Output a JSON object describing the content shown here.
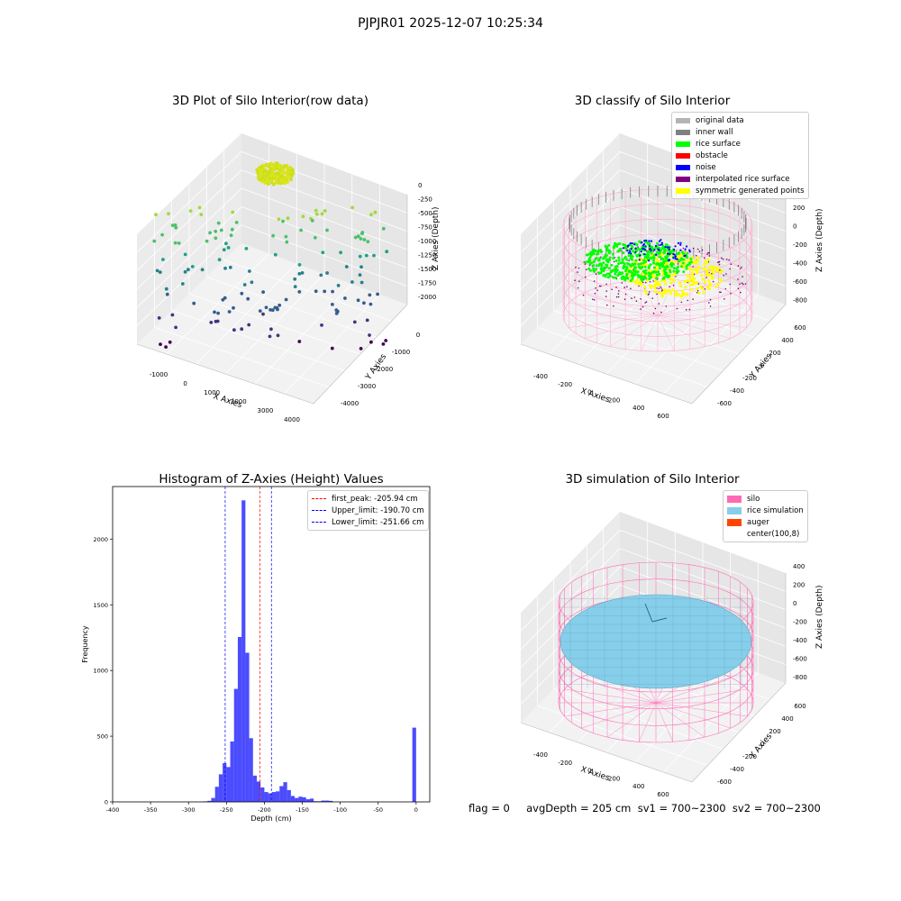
{
  "suptitle": "PJPJR01 2025-12-07 10:25:34",
  "panels": {
    "raw": {
      "title": "3D Plot of Silo Interior(row data)",
      "xlabel": "X Axies",
      "ylabel": "Y Axies",
      "zlabel": "Z Axies (Depth)",
      "xticks": [
        "-1000",
        "0",
        "1000",
        "2000",
        "3000",
        "4000"
      ],
      "yticks": [
        "-4000",
        "-3000",
        "-2000",
        "-1000",
        "0"
      ],
      "zticks": [
        "0",
        "-250",
        "-500",
        "-750",
        "-1000",
        "-1250",
        "-1500",
        "-1750",
        "-2000"
      ]
    },
    "classify": {
      "title": "3D classify of Silo Interior",
      "xlabel": "X Axies",
      "ylabel": "Y Axies",
      "zlabel": "Z Axies (Depth)",
      "xticks": [
        "-400",
        "-200",
        "0",
        "200",
        "400",
        "600"
      ],
      "yticks": [
        "-600",
        "-400",
        "-200",
        "0",
        "200",
        "400",
        "600"
      ],
      "zticks": [
        "200",
        "0",
        "-200",
        "-400",
        "-600",
        "-800"
      ],
      "legend": [
        {
          "label": "original data",
          "color": "#b4b4b4"
        },
        {
          "label": "inner wall",
          "color": "#808080"
        },
        {
          "label": "rice surface",
          "color": "#00ff00"
        },
        {
          "label": "obstacle",
          "color": "#ff0000"
        },
        {
          "label": "noise",
          "color": "#0000ff"
        },
        {
          "label": "interpolated rice surface",
          "color": "#800080"
        },
        {
          "label": "symmetric generated points",
          "color": "#ffff00"
        }
      ]
    },
    "simulation": {
      "title": "3D simulation of Silo Interior",
      "xlabel": "X Axies",
      "ylabel": "Y Axies",
      "zlabel": "Z Axies (Depth)",
      "xticks": [
        "-400",
        "-200",
        "0",
        "200",
        "400",
        "600"
      ],
      "yticks": [
        "-600",
        "-400",
        "-200",
        "0",
        "200",
        "400",
        "600"
      ],
      "zticks": [
        "400",
        "200",
        "0",
        "-200",
        "-400",
        "-600",
        "-800"
      ],
      "legend": [
        {
          "label": "silo",
          "color": "#ff69b4"
        },
        {
          "label": "rice simulation",
          "color": "#87ceeb"
        },
        {
          "label": "auger",
          "color": "#ff4500"
        },
        {
          "label": "center(100,8)",
          "color": "#ffffff"
        }
      ],
      "footer": "flag = 0     avgDepth = 205 cm  sv1 = 700~2300  sv2 = 700~2300"
    }
  },
  "chart_data": {
    "type": "bar",
    "title": "Histogram of Z-Axies (Height) Values",
    "xlabel": "Depth (cm)",
    "ylabel": "Frequency",
    "xlim": [
      -400,
      18
    ],
    "ylim": [
      0,
      2400
    ],
    "xticks": [
      -400,
      -350,
      -300,
      -250,
      -200,
      -150,
      -100,
      -50,
      0
    ],
    "yticks": [
      0,
      500,
      1000,
      1500,
      2000
    ],
    "bar_color": "#0000ff",
    "bins": [
      {
        "x": -285,
        "w": 5,
        "v": 2
      },
      {
        "x": -280,
        "w": 5,
        "v": 4
      },
      {
        "x": -275,
        "w": 5,
        "v": 8
      },
      {
        "x": -270,
        "w": 5,
        "v": 30
      },
      {
        "x": -265,
        "w": 5,
        "v": 115
      },
      {
        "x": -260,
        "w": 5,
        "v": 210
      },
      {
        "x": -255,
        "w": 5,
        "v": 295
      },
      {
        "x": -250,
        "w": 5,
        "v": 265
      },
      {
        "x": -245,
        "w": 5,
        "v": 460
      },
      {
        "x": -240,
        "w": 5,
        "v": 860
      },
      {
        "x": -235,
        "w": 5,
        "v": 1255
      },
      {
        "x": -230,
        "w": 5,
        "v": 2295
      },
      {
        "x": -225,
        "w": 5,
        "v": 1135
      },
      {
        "x": -220,
        "w": 5,
        "v": 485
      },
      {
        "x": -215,
        "w": 5,
        "v": 200
      },
      {
        "x": -210,
        "w": 5,
        "v": 155
      },
      {
        "x": -205,
        "w": 5,
        "v": 110
      },
      {
        "x": -200,
        "w": 5,
        "v": 75
      },
      {
        "x": -195,
        "w": 5,
        "v": 65
      },
      {
        "x": -190,
        "w": 5,
        "v": 75
      },
      {
        "x": -185,
        "w": 5,
        "v": 80
      },
      {
        "x": -180,
        "w": 5,
        "v": 120
      },
      {
        "x": -175,
        "w": 5,
        "v": 150
      },
      {
        "x": -170,
        "w": 5,
        "v": 90
      },
      {
        "x": -165,
        "w": 5,
        "v": 45
      },
      {
        "x": -160,
        "w": 5,
        "v": 30
      },
      {
        "x": -155,
        "w": 5,
        "v": 40
      },
      {
        "x": -150,
        "w": 5,
        "v": 35
      },
      {
        "x": -145,
        "w": 5,
        "v": 20
      },
      {
        "x": -140,
        "w": 5,
        "v": 25
      },
      {
        "x": -135,
        "w": 5,
        "v": 5
      },
      {
        "x": -130,
        "w": 5,
        "v": 5
      },
      {
        "x": -125,
        "w": 5,
        "v": 10
      },
      {
        "x": -120,
        "w": 5,
        "v": 10
      },
      {
        "x": -115,
        "w": 5,
        "v": 8
      },
      {
        "x": -5,
        "w": 5,
        "v": 565
      }
    ],
    "vlines": [
      {
        "label": "first_peak: -205.94 cm",
        "x": -205.94,
        "color": "#ff0000"
      },
      {
        "label": "Upper_limit: -190.70 cm",
        "x": -190.7,
        "color": "#0000ff"
      },
      {
        "label": "Lower_limit: -251.66 cm",
        "x": -251.66,
        "color": "#0000ff"
      }
    ]
  }
}
